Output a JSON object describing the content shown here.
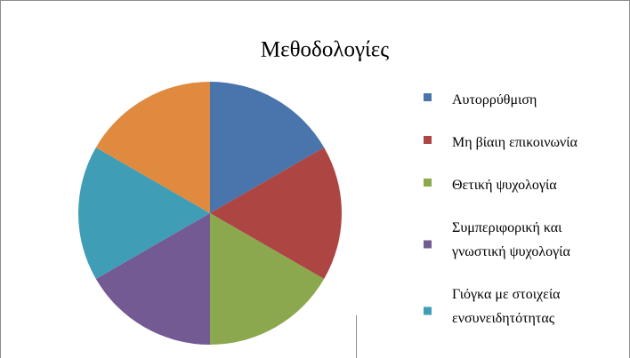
{
  "chart_data": {
    "type": "pie",
    "title": "Μεθοδολογίες",
    "categories": [
      "Αυτορρύθμιση",
      "Μη βίαιη επικοινωνία",
      "Θετική ψυχολογία",
      "Συμπεριφορική και γνωστική ψυχολογία",
      "Γιόγκα με στοιχεία ενσυνειδητότητας",
      null
    ],
    "values": [
      1,
      1,
      1,
      1,
      1,
      1
    ],
    "colors": [
      "#4a74ac",
      "#ad4643",
      "#8ca84e",
      "#735a93",
      "#3f9db6",
      "#e08a3f"
    ],
    "legend": "right"
  }
}
